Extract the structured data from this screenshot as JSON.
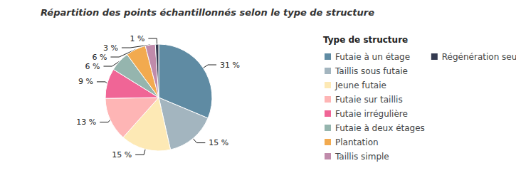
{
  "chart_data": {
    "type": "pie",
    "title": "Répartition des points échantillonnés selon le type de structure",
    "legend_title": "Type de structure",
    "legend": "right",
    "data_labels": true,
    "categories": [
      "Futaie à un étage",
      "Taillis sous futaie",
      "Jeune futaie",
      "Futaie sur taillis",
      "Futaie irrégulière",
      "Futaie à deux étages",
      "Plantation",
      "Taillis simple",
      "Régénération seule"
    ],
    "values": [
      31,
      15,
      15,
      13,
      9,
      6,
      6,
      3,
      1
    ],
    "value_labels": [
      "31 %",
      "15 %",
      "15 %",
      "13 %",
      "9 %",
      "6 %",
      "6 %",
      "3 %",
      "1 %"
    ],
    "colors": [
      "#5f8ba3",
      "#a3b5bf",
      "#fde9b5",
      "#feb5b5",
      "#f06596",
      "#95b5ae",
      "#f2aa4f",
      "#c08bab",
      "#343a50"
    ]
  }
}
